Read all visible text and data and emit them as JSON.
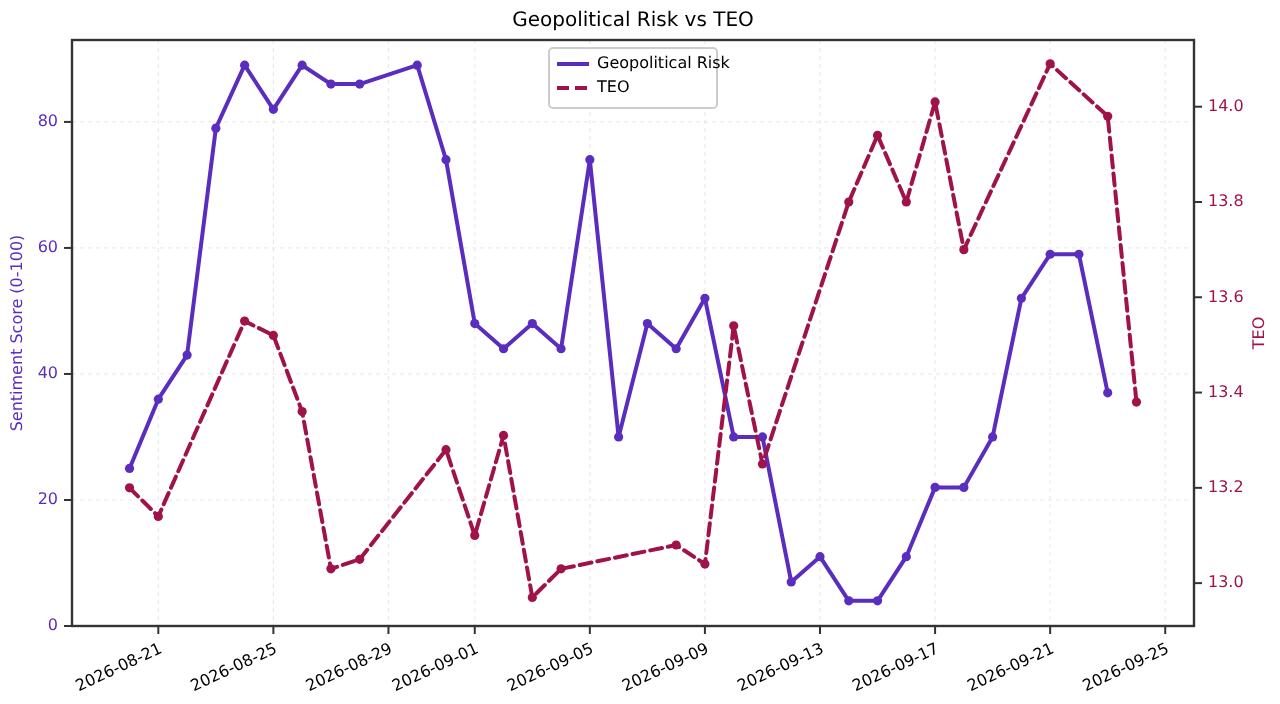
{
  "chart_data": {
    "type": "line",
    "title": "Geopolitical Risk vs TEO",
    "ylabel": "Sentiment Score (0-100)",
    "y2label": "TEO",
    "xlim": [
      "2026-08-18",
      "2026-09-26"
    ],
    "xticks": [
      {
        "value": "2026-08-21",
        "label": "2026-08-21"
      },
      {
        "value": "2026-08-25",
        "label": "2026-08-25"
      },
      {
        "value": "2026-08-29",
        "label": "2026-08-29"
      },
      {
        "value": "2026-09-01",
        "label": "2026-09-01"
      },
      {
        "value": "2026-09-05",
        "label": "2026-09-05"
      },
      {
        "value": "2026-09-09",
        "label": "2026-09-09"
      },
      {
        "value": "2026-09-13",
        "label": "2026-09-13"
      },
      {
        "value": "2026-09-17",
        "label": "2026-09-17"
      },
      {
        "value": "2026-09-21",
        "label": "2026-09-21"
      },
      {
        "value": "2026-09-25",
        "label": "2026-09-25"
      }
    ],
    "ylim": [
      0,
      93
    ],
    "yticks": [
      0,
      20,
      40,
      60,
      80
    ],
    "y2lim": [
      12.91,
      14.14
    ],
    "y2ticks": [
      {
        "value": 13,
        "label": "13.0"
      },
      {
        "value": 13.2,
        "label": "13.2"
      },
      {
        "value": 13.4,
        "label": "13.4"
      },
      {
        "value": 13.6,
        "label": "13.6"
      },
      {
        "value": 13.8,
        "label": "13.8"
      },
      {
        "value": 14,
        "label": "14.0"
      }
    ],
    "grid": true,
    "legend": "top",
    "marker": "circle",
    "series": [
      {
        "name": "Geopolitical Risk",
        "color": "#5b2dbf",
        "line_style": "solid",
        "x": [
          "2026-08-20",
          "2026-08-21",
          "2026-08-22",
          "2026-08-23",
          "2026-08-24",
          "2026-08-25",
          "2026-08-26",
          "2026-08-27",
          "2026-08-28",
          "2026-08-30",
          "2026-08-31",
          "2026-09-01",
          "2026-09-02",
          "2026-09-03",
          "2026-09-04",
          "2026-09-05",
          "2026-09-06",
          "2026-09-07",
          "2026-09-08",
          "2026-09-09",
          "2026-09-10",
          "2026-09-11",
          "2026-09-12",
          "2026-09-13",
          "2026-09-14",
          "2026-09-15",
          "2026-09-16",
          "2026-09-17",
          "2026-09-18",
          "2026-09-19",
          "2026-09-20",
          "2026-09-21",
          "2026-09-22",
          "2026-09-23"
        ],
        "values": [
          25,
          36,
          43,
          79,
          89,
          82,
          89,
          86,
          86,
          89,
          74,
          48,
          44,
          48,
          44,
          74,
          30,
          48,
          44,
          52,
          30,
          30,
          7,
          11,
          4,
          4,
          11,
          22,
          22,
          30,
          52,
          59,
          59,
          37
        ]
      },
      {
        "name": "TEO",
        "color": "#a0134a",
        "line_style": "dashed",
        "axis": "y2",
        "x": [
          "2026-08-20",
          "2026-08-21",
          "2026-08-24",
          "2026-08-25",
          "2026-08-26",
          "2026-08-27",
          "2026-08-28",
          "2026-08-31",
          "2026-09-01",
          "2026-09-02",
          "2026-09-03",
          "2026-09-04",
          "2026-09-08",
          "2026-09-09",
          "2026-09-10",
          "2026-09-11",
          "2026-09-14",
          "2026-09-15",
          "2026-09-16",
          "2026-09-17",
          "2026-09-18",
          "2026-09-21",
          "2026-09-23",
          "2026-09-24"
        ],
        "values": [
          13.2,
          13.14,
          13.55,
          13.52,
          13.36,
          13.03,
          13.05,
          13.28,
          13.1,
          13.31,
          12.97,
          13.03,
          13.08,
          13.04,
          13.54,
          13.25,
          13.8,
          13.94,
          13.8,
          14.01,
          13.7,
          14.09,
          13.98,
          13.38
        ]
      }
    ]
  }
}
